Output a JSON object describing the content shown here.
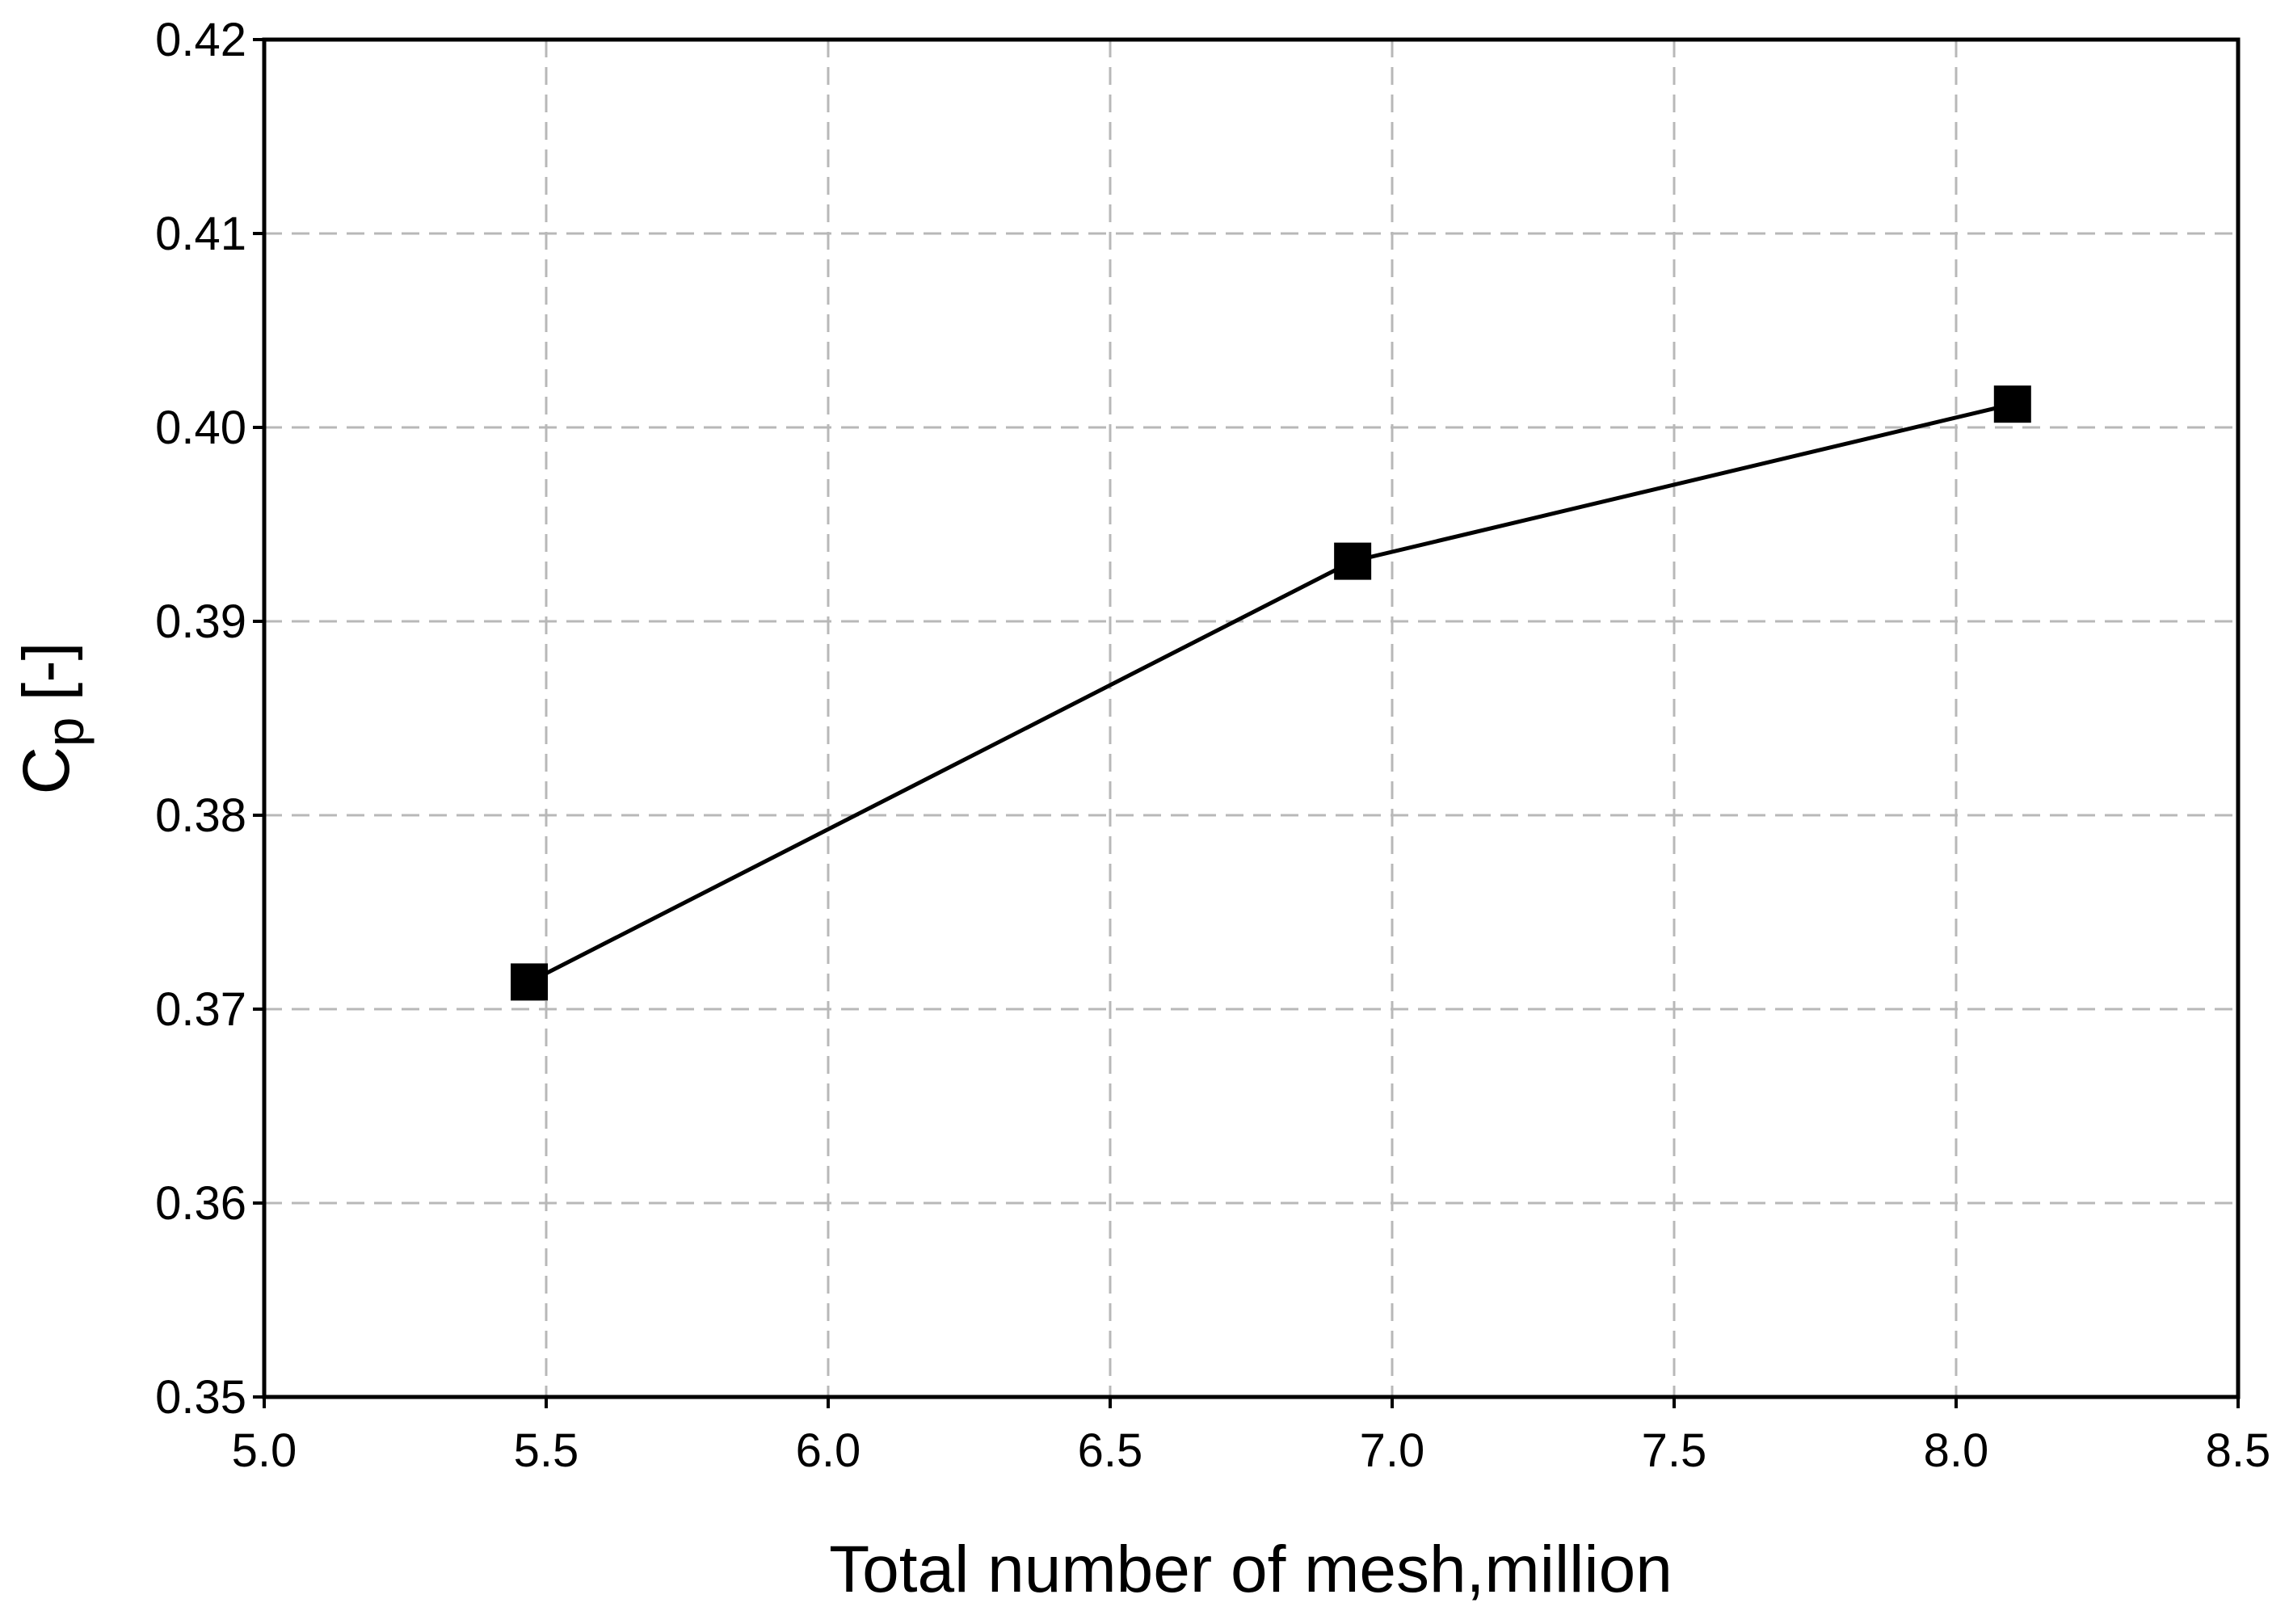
{
  "chart_data": {
    "type": "line",
    "xlabel": "Total number of mesh,million",
    "ylabel_symbol": "C",
    "ylabel_subscript": "p",
    "ylabel_unit": "[-]",
    "x": [
      5.47,
      6.93,
      8.1
    ],
    "series": [
      {
        "color": "#000000",
        "marker": "square",
        "values": [
          0.3714,
          0.3931,
          0.4012
        ]
      }
    ],
    "xlim": [
      5.0,
      8.5
    ],
    "ylim": [
      0.35,
      0.42
    ],
    "xticks": [
      {
        "value": 5,
        "label": "5.0"
      },
      5.5,
      {
        "value": 6,
        "label": "6.0"
      },
      6.5,
      {
        "value": 7,
        "label": "7.0"
      },
      7.5,
      {
        "value": 8,
        "label": "8.0"
      },
      8.5
    ],
    "yticks": [
      0.35,
      0.36,
      0.37,
      0.38,
      0.39,
      {
        "value": 0.4,
        "label": "0.40"
      },
      0.41,
      0.42
    ],
    "grid": true
  }
}
